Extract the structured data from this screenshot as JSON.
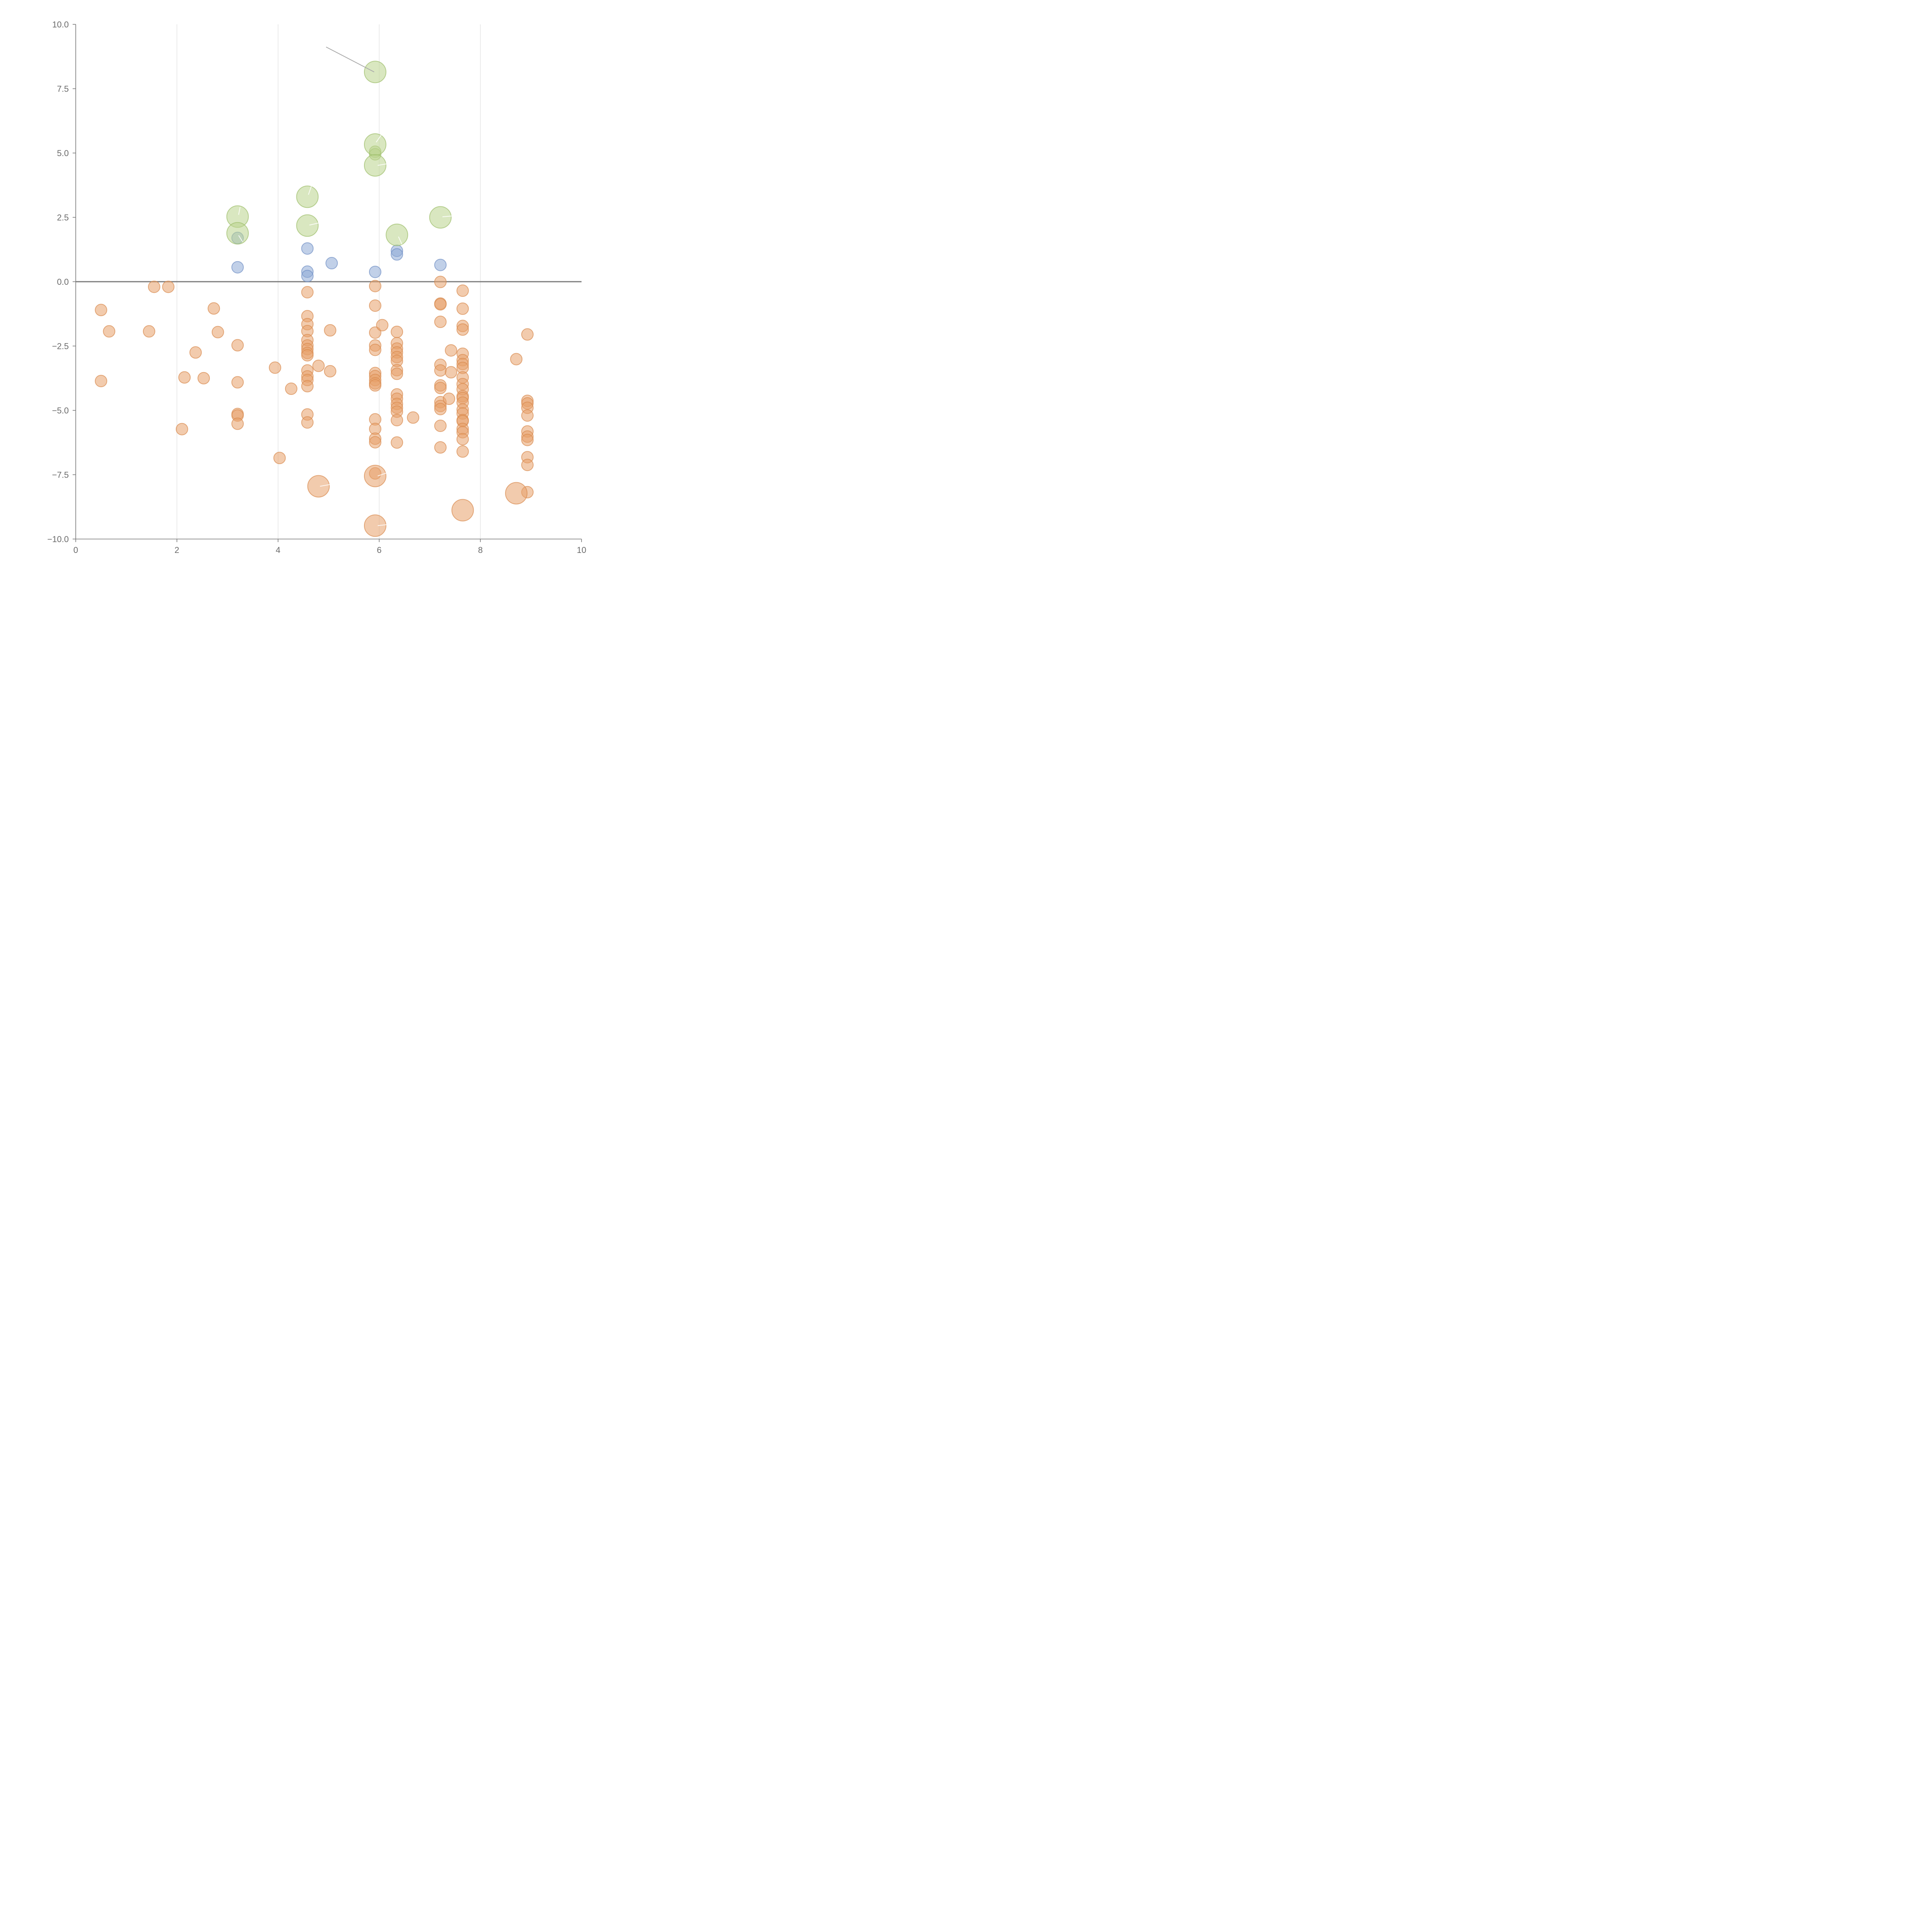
{
  "chart_data": {
    "type": "scatter",
    "title": "",
    "xlabel": "",
    "ylabel": "",
    "xlim": [
      0,
      10
    ],
    "ylim": [
      -10,
      10
    ],
    "x_ticks": [
      "0",
      "2",
      "4",
      "6",
      "8",
      "10"
    ],
    "y_ticks": [
      "−10.0",
      "−7.5",
      "−5.0",
      "−2.5",
      "0.0",
      "2.5",
      "5.0",
      "7.5",
      "10.0"
    ],
    "x_tick_values": [
      0,
      2,
      4,
      6,
      8,
      10
    ],
    "y_tick_values": [
      -10,
      -7.5,
      -5,
      -2.5,
      0,
      2.5,
      5,
      7.5,
      10
    ],
    "grid": "vertical",
    "zero_line": 0,
    "colors": {
      "orange": "#e8a06a",
      "orange_stroke": "#d98a4e",
      "blue": "#8eaad6",
      "blue_stroke": "#6f8fc4",
      "green": "#b9d48c",
      "green_stroke": "#9cbd69",
      "leader_light": "#ffffff",
      "leader_dark": "#aaaaaa"
    },
    "series": [
      {
        "name": "orange-small",
        "color": "orange",
        "size": "small",
        "points": [
          [
            0.5,
            -1.1
          ],
          [
            0.66,
            -1.93
          ],
          [
            0.5,
            -3.86
          ],
          [
            1.45,
            -1.93
          ],
          [
            1.55,
            -0.2
          ],
          [
            1.83,
            -0.2
          ],
          [
            2.1,
            -5.73
          ],
          [
            2.15,
            -3.72
          ],
          [
            2.37,
            -2.75
          ],
          [
            2.53,
            -3.75
          ],
          [
            2.73,
            -1.04
          ],
          [
            2.81,
            -1.96
          ],
          [
            3.2,
            -2.47
          ],
          [
            3.2,
            -3.91
          ],
          [
            3.2,
            -5.14
          ],
          [
            3.2,
            -5.2
          ],
          [
            3.2,
            -5.52
          ],
          [
            3.94,
            -3.34
          ],
          [
            4.03,
            -6.85
          ],
          [
            4.26,
            -4.16
          ],
          [
            4.58,
            -0.41
          ],
          [
            4.58,
            -1.34
          ],
          [
            4.58,
            -1.65
          ],
          [
            4.58,
            -1.92
          ],
          [
            4.58,
            -2.27
          ],
          [
            4.58,
            -2.48
          ],
          [
            4.58,
            -2.62
          ],
          [
            4.58,
            -2.77
          ],
          [
            4.58,
            -2.86
          ],
          [
            4.58,
            -3.45
          ],
          [
            4.58,
            -3.68
          ],
          [
            4.58,
            -3.82
          ],
          [
            4.58,
            -4.06
          ],
          [
            4.58,
            -5.16
          ],
          [
            4.58,
            -5.47
          ],
          [
            4.8,
            -3.27
          ],
          [
            5.03,
            -1.89
          ],
          [
            5.03,
            -3.48
          ],
          [
            5.92,
            -0.17
          ],
          [
            5.92,
            -0.93
          ],
          [
            5.92,
            -1.98
          ],
          [
            5.92,
            -2.48
          ],
          [
            5.92,
            -2.65
          ],
          [
            5.92,
            -3.55
          ],
          [
            5.92,
            -3.67
          ],
          [
            5.92,
            -3.82
          ],
          [
            5.92,
            -3.95
          ],
          [
            5.92,
            -4.03
          ],
          [
            5.92,
            -5.35
          ],
          [
            5.92,
            -5.72
          ],
          [
            5.92,
            -6.1
          ],
          [
            5.92,
            -6.24
          ],
          [
            5.92,
            -7.45
          ],
          [
            6.06,
            -1.69
          ],
          [
            6.35,
            -1.95
          ],
          [
            6.35,
            -2.39
          ],
          [
            6.35,
            -2.6
          ],
          [
            6.35,
            -2.75
          ],
          [
            6.35,
            -2.93
          ],
          [
            6.35,
            -3.08
          ],
          [
            6.35,
            -3.44
          ],
          [
            6.35,
            -3.58
          ],
          [
            6.35,
            -4.38
          ],
          [
            6.35,
            -4.55
          ],
          [
            6.35,
            -4.75
          ],
          [
            6.35,
            -4.9
          ],
          [
            6.35,
            -5.05
          ],
          [
            6.35,
            -5.38
          ],
          [
            6.35,
            -6.25
          ],
          [
            6.67,
            -5.28
          ],
          [
            7.21,
            -0.01
          ],
          [
            7.21,
            -0.85
          ],
          [
            7.21,
            -0.88
          ],
          [
            7.21,
            -1.56
          ],
          [
            7.21,
            -3.23
          ],
          [
            7.21,
            -3.45
          ],
          [
            7.21,
            -4.03
          ],
          [
            7.21,
            -4.13
          ],
          [
            7.21,
            -4.68
          ],
          [
            7.21,
            -4.83
          ],
          [
            7.21,
            -4.95
          ],
          [
            7.21,
            -5.6
          ],
          [
            7.21,
            -6.44
          ],
          [
            7.38,
            -4.55
          ],
          [
            7.42,
            -2.67
          ],
          [
            7.42,
            -3.52
          ],
          [
            7.65,
            -0.35
          ],
          [
            7.65,
            -1.05
          ],
          [
            7.65,
            -1.72
          ],
          [
            7.65,
            -1.86
          ],
          [
            7.65,
            -2.8
          ],
          [
            7.65,
            -3.05
          ],
          [
            7.65,
            -3.2
          ],
          [
            7.65,
            -3.35
          ],
          [
            7.65,
            -3.72
          ],
          [
            7.65,
            -3.98
          ],
          [
            7.65,
            -4.18
          ],
          [
            7.65,
            -4.45
          ],
          [
            7.65,
            -4.52
          ],
          [
            7.65,
            -4.7
          ],
          [
            7.65,
            -4.97
          ],
          [
            7.65,
            -5.12
          ],
          [
            7.65,
            -5.38
          ],
          [
            7.65,
            -5.42
          ],
          [
            7.65,
            -5.72
          ],
          [
            7.65,
            -5.85
          ],
          [
            7.65,
            -6.12
          ],
          [
            7.65,
            -6.6
          ],
          [
            8.71,
            -3.01
          ],
          [
            8.93,
            -2.05
          ],
          [
            8.93,
            -4.63
          ],
          [
            8.93,
            -4.73
          ],
          [
            8.93,
            -4.9
          ],
          [
            8.93,
            -5.2
          ],
          [
            8.93,
            -5.82
          ],
          [
            8.93,
            -6.02
          ],
          [
            8.93,
            -6.15
          ],
          [
            8.93,
            -6.82
          ],
          [
            8.93,
            -7.12
          ],
          [
            8.93,
            -8.18
          ]
        ]
      },
      {
        "name": "orange-large",
        "color": "orange",
        "size": "large",
        "points": [
          [
            4.8,
            -7.95
          ],
          [
            5.92,
            -7.55
          ],
          [
            5.92,
            -9.48
          ],
          [
            7.65,
            -8.88
          ],
          [
            8.71,
            -8.22
          ]
        ]
      },
      {
        "name": "blue",
        "color": "blue",
        "size": "small",
        "points": [
          [
            3.2,
            0.56
          ],
          [
            3.2,
            1.7
          ],
          [
            4.58,
            1.29
          ],
          [
            4.58,
            0.39
          ],
          [
            4.58,
            0.22
          ],
          [
            5.06,
            0.72
          ],
          [
            5.92,
            0.38
          ],
          [
            6.35,
            1.2
          ],
          [
            6.35,
            1.06
          ],
          [
            7.21,
            0.65
          ]
        ]
      },
      {
        "name": "green-small",
        "color": "green",
        "size": "small",
        "points": [
          [
            5.92,
            5.05
          ],
          [
            5.92,
            4.95
          ]
        ]
      },
      {
        "name": "green-large",
        "color": "green",
        "size": "large",
        "points": [
          [
            3.2,
            2.53
          ],
          [
            3.2,
            1.88
          ],
          [
            4.58,
            3.3
          ],
          [
            4.58,
            2.18
          ],
          [
            5.92,
            8.15
          ],
          [
            5.92,
            5.33
          ],
          [
            5.92,
            4.52
          ],
          [
            6.35,
            1.82
          ],
          [
            7.21,
            2.5
          ]
        ]
      }
    ],
    "leader_lines": [
      {
        "style": "dark",
        "from": [
          5.9,
          8.15
        ],
        "to": [
          4.95,
          9.12
        ]
      },
      {
        "style": "light",
        "from": [
          3.22,
          2.6
        ],
        "to": [
          3.25,
          2.9
        ]
      },
      {
        "style": "light",
        "from": [
          3.22,
          1.8
        ],
        "to": [
          3.3,
          1.55
        ]
      },
      {
        "style": "light",
        "from": [
          4.6,
          3.38
        ],
        "to": [
          4.66,
          3.72
        ]
      },
      {
        "style": "light",
        "from": [
          4.62,
          2.2
        ],
        "to": [
          4.8,
          2.28
        ]
      },
      {
        "style": "light",
        "from": [
          5.94,
          5.42
        ],
        "to": [
          6.04,
          5.7
        ]
      },
      {
        "style": "light",
        "from": [
          5.97,
          4.52
        ],
        "to": [
          6.15,
          4.58
        ]
      },
      {
        "style": "light",
        "from": [
          6.38,
          1.75
        ],
        "to": [
          6.45,
          1.45
        ]
      },
      {
        "style": "light",
        "from": [
          7.25,
          2.52
        ],
        "to": [
          7.6,
          2.58
        ]
      },
      {
        "style": "light",
        "from": [
          4.83,
          -7.95
        ],
        "to": [
          5.03,
          -7.88
        ]
      },
      {
        "style": "light",
        "from": [
          5.97,
          -7.55
        ],
        "to": [
          6.15,
          -7.43
        ]
      },
      {
        "style": "light",
        "from": [
          5.97,
          -9.48
        ],
        "to": [
          6.15,
          -9.44
        ]
      }
    ]
  }
}
